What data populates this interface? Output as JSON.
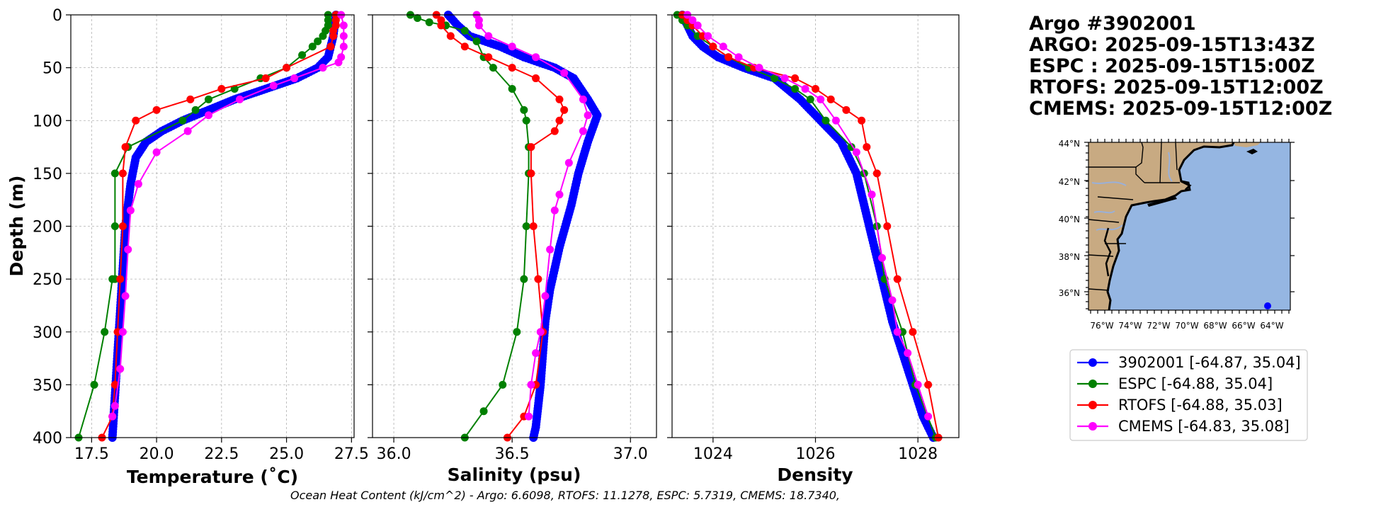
{
  "chart_data": [
    {
      "type": "line",
      "name": "temperature",
      "xlabel": "Temperature (˚C)",
      "ylabel": "Depth (m)",
      "xlim": [
        16.7,
        27.6
      ],
      "ylim": [
        400,
        0
      ],
      "xticks": [
        17.5,
        20.0,
        22.5,
        25.0,
        27.5
      ],
      "xtick_labels": [
        "17.5",
        "20.0",
        "22.5",
        "25.0",
        "27.5"
      ],
      "yticks": [
        0,
        50,
        100,
        150,
        200,
        250,
        300,
        350,
        400
      ],
      "ytick_labels": [
        "0",
        "50",
        "100",
        "150",
        "200",
        "250",
        "300",
        "350",
        "400"
      ],
      "grid": true,
      "series": [
        {
          "name": "3902001",
          "color": "#0000ff",
          "dense": true,
          "x": [
            26.9,
            26.8,
            26.6,
            26.2,
            25.4,
            24.2,
            23.0,
            22.0,
            21.0,
            20.2,
            19.6,
            19.2,
            19.0,
            18.9,
            18.8,
            18.7,
            18.6,
            18.5,
            18.4,
            18.3
          ],
          "y": [
            0,
            20,
            40,
            50,
            60,
            70,
            80,
            90,
            100,
            110,
            120,
            135,
            160,
            180,
            200,
            240,
            280,
            320,
            360,
            400
          ]
        },
        {
          "name": "ESPC",
          "color": "#008000",
          "dense": false,
          "x": [
            26.6,
            26.6,
            26.6,
            26.5,
            26.4,
            26.2,
            26.0,
            25.6,
            25.0,
            24.0,
            23.0,
            22.0,
            21.5,
            21.0,
            18.9,
            18.4,
            18.4,
            18.4,
            18.3,
            18.0,
            17.6,
            17.0
          ],
          "y": [
            0,
            5,
            10,
            15,
            20,
            25,
            30,
            38,
            50,
            60,
            70,
            80,
            90,
            100,
            125,
            150,
            200,
            250,
            250,
            300,
            350,
            400
          ]
        },
        {
          "name": "RTOFS",
          "color": "#ff0000",
          "dense": false,
          "x": [
            26.9,
            26.9,
            26.9,
            26.8,
            26.8,
            26.7,
            25.0,
            24.2,
            22.5,
            21.3,
            20.0,
            19.2,
            18.8,
            18.7,
            18.7,
            18.6,
            18.5,
            18.4,
            18.3,
            17.9
          ],
          "y": [
            0,
            5,
            10,
            15,
            20,
            30,
            50,
            60,
            70,
            80,
            90,
            100,
            125,
            150,
            200,
            250,
            300,
            350,
            380,
            400
          ]
        },
        {
          "name": "CMEMS",
          "color": "#ff00ff",
          "dense": false,
          "x": [
            27.1,
            27.2,
            27.2,
            27.2,
            27.1,
            27.0,
            26.4,
            25.3,
            24.5,
            23.2,
            22.0,
            21.2,
            20.0,
            19.3,
            19.0,
            18.9,
            18.8,
            18.7,
            18.6,
            18.4,
            18.3
          ],
          "y": [
            0,
            10,
            20,
            30,
            40,
            45,
            50,
            60,
            67,
            80,
            95,
            110,
            130,
            160,
            185,
            222,
            266,
            300,
            335,
            370,
            380
          ]
        }
      ]
    },
    {
      "type": "line",
      "name": "salinity",
      "xlabel": "Salinity (psu)",
      "xlim": [
        35.91,
        37.11
      ],
      "ylim": [
        400,
        0
      ],
      "xticks": [
        36.0,
        36.5,
        37.0
      ],
      "xtick_labels": [
        "36.0",
        "36.5",
        "37.0"
      ],
      "grid": true,
      "series": [
        {
          "name": "3902001",
          "color": "#0000ff",
          "dense": true,
          "x": [
            36.23,
            36.27,
            36.32,
            36.45,
            36.55,
            36.68,
            36.76,
            36.82,
            36.86,
            36.82,
            36.78,
            36.75,
            36.7,
            36.66,
            36.64,
            36.63,
            36.62,
            36.61,
            36.6,
            36.59
          ],
          "y": [
            0,
            10,
            20,
            30,
            40,
            50,
            60,
            80,
            95,
            120,
            150,
            180,
            220,
            260,
            290,
            320,
            350,
            370,
            390,
            400
          ]
        },
        {
          "name": "ESPC",
          "color": "#008000",
          "dense": false,
          "x": [
            36.07,
            36.1,
            36.15,
            36.22,
            36.3,
            36.35,
            36.38,
            36.42,
            36.5,
            36.55,
            36.56,
            36.57,
            36.57,
            36.56,
            36.55,
            36.52,
            36.46,
            36.38,
            36.3
          ],
          "y": [
            0,
            3,
            7,
            10,
            15,
            25,
            40,
            50,
            70,
            90,
            100,
            125,
            150,
            200,
            250,
            300,
            350,
            375,
            400
          ]
        },
        {
          "name": "RTOFS",
          "color": "#ff0000",
          "dense": false,
          "x": [
            36.18,
            36.2,
            36.2,
            36.24,
            36.3,
            36.4,
            36.5,
            36.6,
            36.7,
            36.72,
            36.7,
            36.68,
            36.58,
            36.58,
            36.59,
            36.61,
            36.63,
            36.6,
            36.55,
            36.48
          ],
          "y": [
            0,
            5,
            10,
            20,
            30,
            40,
            50,
            60,
            80,
            90,
            100,
            110,
            125,
            150,
            200,
            250,
            300,
            350,
            380,
            400
          ]
        },
        {
          "name": "CMEMS",
          "color": "#ff00ff",
          "dense": false,
          "x": [
            36.35,
            36.36,
            36.36,
            36.4,
            36.5,
            36.6,
            36.72,
            36.8,
            36.82,
            36.8,
            36.74,
            36.7,
            36.68,
            36.66,
            36.64,
            36.62,
            36.6,
            36.58,
            36.57
          ],
          "y": [
            0,
            5,
            10,
            20,
            30,
            40,
            55,
            80,
            95,
            110,
            140,
            170,
            185,
            222,
            266,
            300,
            320,
            350,
            380
          ]
        }
      ]
    },
    {
      "type": "line",
      "name": "density",
      "xlabel": "Density",
      "xlim": [
        1023.2,
        1028.8
      ],
      "ylim": [
        400,
        0
      ],
      "xticks": [
        1024,
        1026,
        1028
      ],
      "xtick_labels": [
        "1024",
        "1026",
        "1028"
      ],
      "grid": true,
      "series": [
        {
          "name": "3902001",
          "color": "#0000ff",
          "dense": true,
          "x": [
            1023.4,
            1023.5,
            1023.6,
            1023.8,
            1024.1,
            1024.6,
            1025.2,
            1025.7,
            1026.1,
            1026.5,
            1026.8,
            1026.95,
            1027.1,
            1027.3,
            1027.5,
            1027.7,
            1027.9,
            1028.1,
            1028.3
          ],
          "y": [
            0,
            10,
            20,
            30,
            40,
            50,
            60,
            80,
            100,
            120,
            150,
            180,
            210,
            250,
            290,
            320,
            350,
            380,
            400
          ]
        },
        {
          "name": "ESPC",
          "color": "#008000",
          "dense": false,
          "x": [
            1023.3,
            1023.4,
            1023.5,
            1023.7,
            1024.0,
            1024.3,
            1024.7,
            1025.2,
            1025.6,
            1025.9,
            1026.2,
            1026.7,
            1026.95,
            1027.2,
            1027.35,
            1027.7,
            1027.95,
            1028.35
          ],
          "y": [
            0,
            5,
            10,
            20,
            30,
            40,
            50,
            60,
            70,
            80,
            100,
            125,
            150,
            200,
            250,
            300,
            350,
            400
          ]
        },
        {
          "name": "RTOFS",
          "color": "#ff0000",
          "dense": false,
          "x": [
            1023.4,
            1023.5,
            1023.6,
            1023.8,
            1024.0,
            1024.3,
            1024.8,
            1025.6,
            1026.0,
            1026.3,
            1026.6,
            1026.9,
            1027.0,
            1027.2,
            1027.4,
            1027.6,
            1027.9,
            1028.2,
            1028.4
          ],
          "y": [
            0,
            5,
            10,
            20,
            30,
            40,
            50,
            60,
            70,
            80,
            90,
            100,
            125,
            150,
            200,
            250,
            300,
            350,
            400
          ]
        },
        {
          "name": "CMEMS",
          "color": "#ff00ff",
          "dense": false,
          "x": [
            1023.5,
            1023.6,
            1023.7,
            1023.9,
            1024.2,
            1024.5,
            1024.9,
            1025.4,
            1025.8,
            1026.1,
            1026.4,
            1026.8,
            1027.1,
            1027.3,
            1027.5,
            1027.6,
            1027.8,
            1028.0,
            1028.2
          ],
          "y": [
            0,
            5,
            10,
            20,
            30,
            40,
            50,
            60,
            70,
            80,
            100,
            130,
            170,
            230,
            270,
            300,
            320,
            350,
            380
          ]
        }
      ]
    }
  ],
  "info": {
    "lines": [
      "Argo #3902001",
      "ARGO: 2025-09-15T13:43Z",
      "ESPC : 2025-09-15T15:00Z",
      "RTOFS: 2025-09-15T12:00Z",
      "CMEMS: 2025-09-15T12:00Z"
    ]
  },
  "map": {
    "lat_labels": [
      "44°N",
      "42°N",
      "40°N",
      "38°N",
      "36°N"
    ],
    "lon_labels": [
      "76°W",
      "74°W",
      "72°W",
      "70°W",
      "68°W",
      "66°W",
      "64°W"
    ],
    "colors": {
      "land": "#c8aa82",
      "ocean": "#95b6e2",
      "river": "#9ab0d8",
      "float": "#0000ff"
    }
  },
  "legend": {
    "entries": [
      {
        "label": "3902001 [-64.87, 35.04]",
        "color": "#0000ff"
      },
      {
        "label": "ESPC [-64.88, 35.04]",
        "color": "#008000"
      },
      {
        "label": "RTOFS [-64.88, 35.03]",
        "color": "#ff0000"
      },
      {
        "label": "CMEMS [-64.83, 35.08]",
        "color": "#ff00ff"
      }
    ]
  },
  "footer": {
    "ohc_text": "Ocean Heat Content (kJ/cm^2) - Argo: 6.6098,  RTOFS: 11.1278,  ESPC: 5.7319,  CMEMS: 18.7340,"
  }
}
